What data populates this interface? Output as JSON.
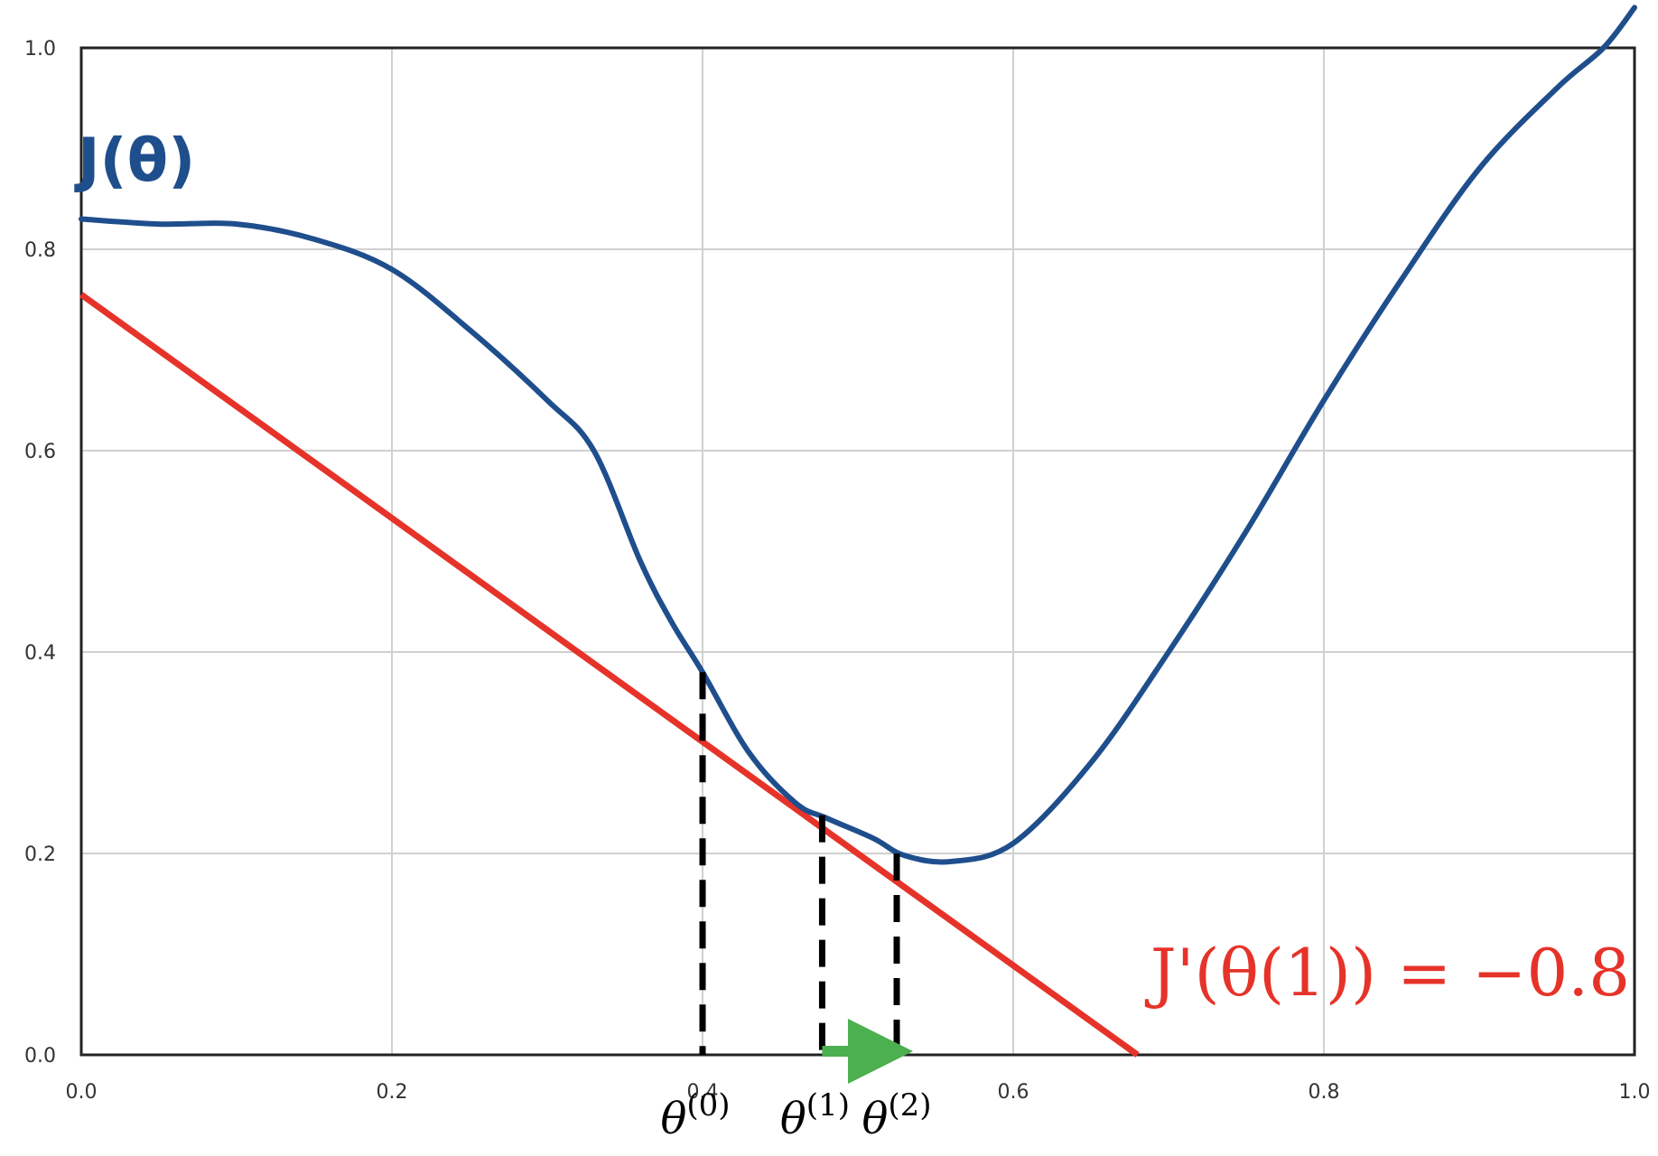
{
  "chart_data": {
    "type": "line",
    "xlim": [
      0.0,
      1.0
    ],
    "ylim": [
      0.0,
      1.0
    ],
    "x_ticks": [
      "0.0",
      "0.2",
      "0.4",
      "0.6",
      "0.8",
      "1.0"
    ],
    "y_ticks": [
      "0.0",
      "0.2",
      "0.4",
      "0.6",
      "0.8",
      "1.0"
    ],
    "grid": true,
    "colors": {
      "curve": "#1f4e8c",
      "tangent": "#e63329",
      "marker_lines": "#000000",
      "step_arrow": "#4caf50",
      "grid": "#d0d0d0"
    },
    "series": [
      {
        "label": "J(θ)",
        "x": [
          0.0,
          0.05,
          0.1,
          0.15,
          0.2,
          0.25,
          0.3,
          0.33,
          0.36,
          0.38,
          0.4,
          0.43,
          0.46,
          0.48,
          0.51,
          0.53,
          0.56,
          0.6,
          0.65,
          0.7,
          0.75,
          0.8,
          0.85,
          0.9,
          0.95,
          0.98,
          1.0
        ],
        "y": [
          0.83,
          0.825,
          0.825,
          0.81,
          0.78,
          0.72,
          0.65,
          0.6,
          0.49,
          0.43,
          0.38,
          0.3,
          0.25,
          0.235,
          0.215,
          0.198,
          0.192,
          0.21,
          0.29,
          0.4,
          0.52,
          0.65,
          0.77,
          0.88,
          0.96,
          1.0,
          1.04
        ]
      }
    ],
    "tangent": {
      "label": "J'(θ(1)) = −0.8",
      "x": [
        0.0,
        0.68
      ],
      "y": [
        0.755,
        0.0
      ]
    },
    "markers": [
      {
        "name": "θ",
        "sup": "(0)",
        "x": 0.4,
        "y_top": 0.38
      },
      {
        "name": "θ",
        "sup": "(1)",
        "x": 0.477,
        "y_top": 0.238
      },
      {
        "name": "θ",
        "sup": "(2)",
        "x": 0.525,
        "y_top": 0.2
      }
    ],
    "step_arrow": {
      "from_x": 0.477,
      "to_x": 0.525
    }
  }
}
